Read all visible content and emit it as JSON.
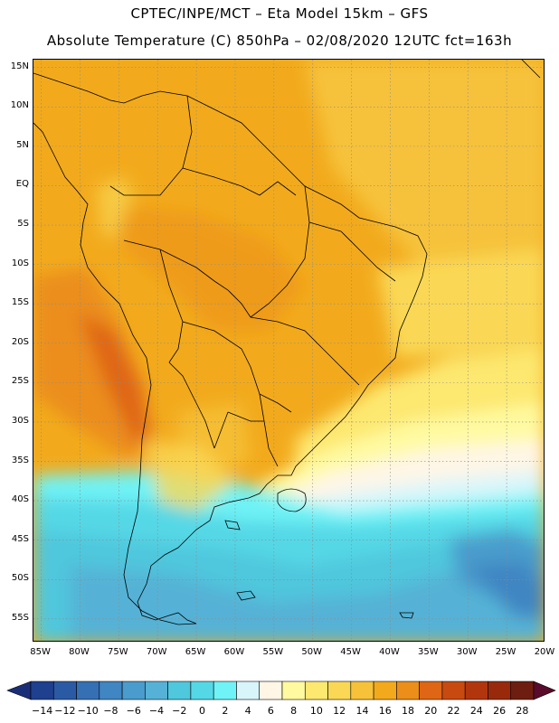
{
  "header": {
    "title_line1": "CPTEC/INPE/MCT –  Eta Model 15km – GFS",
    "title_line2": "Absolute Temperature (C) 850hPa – 02/08/2020 12UTC fct=163h"
  },
  "map": {
    "lat_labels": [
      "15N",
      "10N",
      "5N",
      "EQ",
      "5S",
      "10S",
      "15S",
      "20S",
      "25S",
      "30S",
      "35S",
      "40S",
      "45S",
      "50S",
      "55S"
    ],
    "lat_values": [
      15,
      10,
      5,
      0,
      -5,
      -10,
      -15,
      -20,
      -25,
      -30,
      -35,
      -40,
      -45,
      -50,
      -55
    ],
    "lon_labels": [
      "85W",
      "80W",
      "75W",
      "70W",
      "65W",
      "60W",
      "55W",
      "50W",
      "45W",
      "40W",
      "35W",
      "30W",
      "25W",
      "20W"
    ],
    "lon_values": [
      -85,
      -80,
      -75,
      -70,
      -65,
      -60,
      -55,
      -50,
      -45,
      -40,
      -35,
      -30,
      -25,
      -20
    ],
    "extent": {
      "lon_min": -86,
      "lon_max": -20,
      "lat_min": -58,
      "lat_max": 16
    }
  },
  "colorbar": {
    "labels": [
      "-14",
      "-12",
      "-10",
      "-8",
      "-6",
      "-4",
      "-2",
      "0",
      "2",
      "4",
      "6",
      "8",
      "10",
      "12",
      "14",
      "16",
      "18",
      "20",
      "22",
      "24",
      "26",
      "28"
    ],
    "colors": [
      "#1f3f8f",
      "#2b5aa5",
      "#3570b5",
      "#3f86c2",
      "#4a9ccc",
      "#55b2d6",
      "#4fc7dd",
      "#55d8e6",
      "#6ff3f6",
      "#d8f6fa",
      "#fff6e6",
      "#fffaa0",
      "#fde870",
      "#fad855",
      "#f6c23a",
      "#f2aa1c",
      "#eb8e1a",
      "#df6614",
      "#c94a10",
      "#b2360d",
      "#982a0b",
      "#6e1e10"
    ],
    "under_color": "#1a2e78",
    "over_color": "#5a0a2a"
  }
}
